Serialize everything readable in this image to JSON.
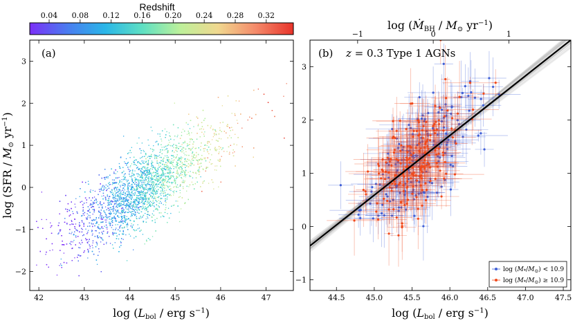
{
  "colorbar": {
    "title": "Redshift",
    "ticks": [
      "0.04",
      "0.08",
      "0.12",
      "0.16",
      "0.20",
      "0.24",
      "0.28",
      "0.32"
    ],
    "range": [
      0.015,
      0.355
    ],
    "colors": [
      "#7b2ff7",
      "#4a7cf0",
      "#2ab6e8",
      "#5fe0c2",
      "#bdf09a",
      "#f0d88f",
      "#f48a6a",
      "#e8332a"
    ]
  },
  "chart_data": [
    {
      "type": "scatter",
      "panel_label": "(a)",
      "xlabel": "log (L_bol / erg s^-1)",
      "ylabel": "log (SFR / M_sun yr^-1)",
      "xlim": [
        41.8,
        47.6
      ],
      "ylim": [
        -2.45,
        3.5
      ],
      "xticks": [
        "42",
        "43",
        "44",
        "45",
        "46",
        "47"
      ],
      "yticks": [
        "-2",
        "-1",
        "0",
        "1",
        "2",
        "3"
      ],
      "xtick_values": [
        42,
        43,
        44,
        45,
        46,
        47
      ],
      "ytick_values": [
        -2,
        -1,
        0,
        1,
        2,
        3
      ],
      "color_by": "redshift",
      "n_points": 6000,
      "trend": {
        "slope": 0.63,
        "intercept_at_x44": -0.2,
        "scatter_dex": 0.45
      },
      "redshift_trend": {
        "x_at_z0": 42.3,
        "slope_per_dex": 0.067
      }
    },
    {
      "type": "scatter",
      "panel_label": "(b)",
      "subtitle": "z = 0.3 Type 1 AGNs",
      "xlabel": "log (L_bol / erg s^-1)",
      "ylabel": "",
      "top_xlabel": "log (dot M_BH / M_sun yr^-1)",
      "xlim": [
        44.15,
        47.6
      ],
      "ylim": [
        -1.2,
        3.5
      ],
      "xticks": [
        "44.5",
        "45.0",
        "45.5",
        "46.0",
        "46.5",
        "47.0",
        "47.5"
      ],
      "xtick_values": [
        44.5,
        45.0,
        45.5,
        46.0,
        46.5,
        47.0,
        47.5
      ],
      "yticks": [
        "-1",
        "0",
        "1",
        "2",
        "3"
      ],
      "ytick_values": [
        -1,
        0,
        1,
        2,
        3
      ],
      "top_xticks": [
        "-1",
        "0",
        "1"
      ],
      "top_xtick_values": [
        44.78,
        45.78,
        46.78
      ],
      "fit": {
        "slope": 1.12,
        "intercept_at_x45_5": 1.15,
        "band_width_dex": 0.12
      },
      "series": [
        {
          "name": "log (M*/M_sun) < 10.9",
          "color": "#3f5fd6",
          "n_points": 170,
          "center_x": 45.55,
          "spread_x": 0.35
        },
        {
          "name": "log (M*/M_sun) >= 10.9",
          "color": "#f04a1c",
          "n_points": 200,
          "center_x": 45.5,
          "spread_x": 0.3
        }
      ],
      "legend": {
        "location": "bottom-right",
        "entries": [
          "log (M*/M_sun) < 10.9",
          "log (M*/M_sun) ≥ 10.9"
        ]
      }
    }
  ]
}
